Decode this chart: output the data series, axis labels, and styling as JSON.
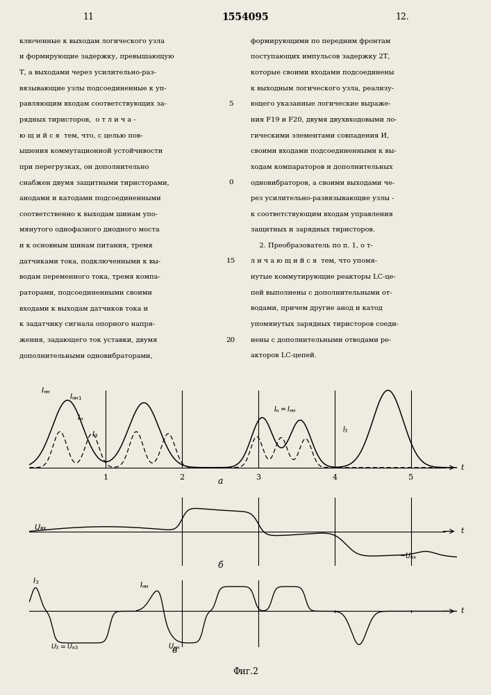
{
  "page_num_left": "11",
  "page_num_center": "1554095",
  "page_num_right": "12.",
  "left_col_lines": [
    "ключенные к выходам логического узла",
    "и формирующие задержку, превышающую",
    "Т, а выходами через усилительно-раз-",
    "вязывающие узлы подсоединенные к уп-",
    "равляющим входам соответствующих за-",
    "рядных тиристоров,  о т л и ч а -",
    "ю щ и й с я  тем, что, с целью пов-",
    "ышения коммутационной устойчивости",
    "при перегрузках, он дополнительно",
    "снабжен двумя защитными тиристорами,",
    "анодами и катодами подсоединенными",
    "соответственно к выходам шинам упо-",
    "мянутого однофазного диодного моста",
    "и к основным шинам питания, тремя",
    "датчиками тока, подключенными к вы-",
    "водам переменного тока, тремя компа-",
    "раторами, подсоединенными своими",
    "входами к выходам датчиков тока и",
    "к задатчику сигнала опорного напря-",
    "жения, задающего ток уставки, двумя",
    "дополнительными одновибраторами,"
  ],
  "line_numbers": [
    "5",
    "0",
    "15",
    "20"
  ],
  "line_number_rows": [
    4,
    9,
    14,
    19
  ],
  "right_col_lines": [
    "формирующими по передним фронтам",
    "поступающих импульсов задержку 2Т,",
    "которые своими входами подсоединены",
    "к выходным логического узла, реализу-",
    "ющего указанные логические выраже-",
    "ния F19 и F20, двумя двухвходовыми ло-",
    "гическими элементами совпадения И,",
    "своими входами подсоединенными к вы-",
    "ходам компараторов и дополнительных",
    "одновибраторов, а своими выходами че-",
    "рез усилительно-развязывающие узлы -",
    "к соответствующим входам управления",
    "защитных и зарядных тиристоров.",
    "    2. Преобразователь по п. 1, о т-",
    "л и ч а ю щ и й с я  тем, что упомя-",
    "нутые коммутирующие реакторы LC-це-",
    "пей выполнены с дополнительными от-",
    "водами, причем другие анод и катод",
    "упомянутых зарядных тиристоров соеди-",
    "нены с дополнительными отводами ре-",
    "акторов LC-цепей."
  ],
  "fig_caption": "Φиг.2",
  "bg_color": "#f0ebe0"
}
